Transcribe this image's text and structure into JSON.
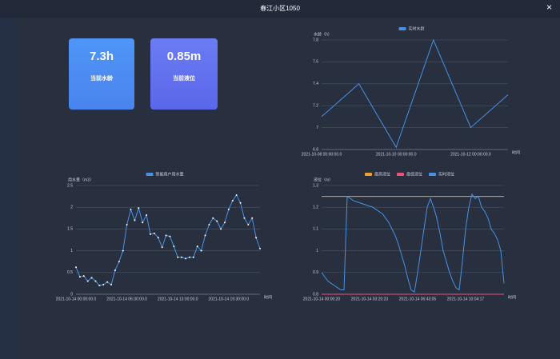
{
  "header": {
    "title": "春江小区1050",
    "close": "×"
  },
  "cards": [
    {
      "value": "7.3h",
      "label": "当前水龄"
    },
    {
      "value": "0.85m",
      "label": "当前液位"
    }
  ],
  "chart_data": [
    {
      "type": "line",
      "y_label": "水龄（h）",
      "x_label": "时间",
      "categories": [
        "2021-10-08 00:00:00.0",
        null,
        "2021-10-10 00:00:00.0",
        null,
        "2021-10-12 00:00:00.0",
        null
      ],
      "series": [
        {
          "name": "实时水龄",
          "color": "#4a90e2",
          "values": [
            7.1,
            7.4,
            6.82,
            7.8,
            7.0,
            7.3
          ]
        }
      ],
      "ylim": [
        6.8,
        7.8
      ],
      "yticks": [
        6.8,
        7,
        7.2,
        7.4,
        7.6,
        7.8
      ],
      "grid": true
    },
    {
      "type": "line",
      "y_label": "用水量（m3）",
      "x_label": "时间",
      "categories": [
        "2021-10-14 00:00:00.0",
        null,
        null,
        null,
        null,
        null,
        null,
        null,
        null,
        null,
        null,
        null,
        null,
        "2021-10-14 06:30:00.0",
        null,
        null,
        null,
        null,
        null,
        null,
        null,
        null,
        null,
        null,
        null,
        null,
        "2021-10-14 13:00:00.0",
        null,
        null,
        null,
        null,
        null,
        null,
        null,
        null,
        null,
        null,
        null,
        null,
        "2021-10-14 19:30:00.0",
        null,
        null,
        null,
        null,
        null,
        null,
        null,
        null
      ],
      "series": [
        {
          "name": "智能用户用水量",
          "color": "#4a90e2",
          "values": [
            0.62,
            0.4,
            0.42,
            0.3,
            0.38,
            0.3,
            0.2,
            0.22,
            0.28,
            0.22,
            0.55,
            0.75,
            1.0,
            1.6,
            1.95,
            1.7,
            1.98,
            1.65,
            1.82,
            1.38,
            1.4,
            1.3,
            1.08,
            1.35,
            1.33,
            1.1,
            0.85,
            0.85,
            0.82,
            0.85,
            0.85,
            1.1,
            1.0,
            1.35,
            1.6,
            1.75,
            1.68,
            1.5,
            1.65,
            1.95,
            2.15,
            2.28,
            2.1,
            1.75,
            1.6,
            1.75,
            1.3,
            1.05
          ]
        }
      ],
      "ylim": [
        0,
        2.5
      ],
      "yticks": [
        0,
        0.5,
        1,
        1.5,
        2,
        2.5
      ],
      "grid": true,
      "markers": true
    },
    {
      "type": "line",
      "y_label": "液位（m）",
      "x_label": "时间",
      "categories": [
        "2021-10-14 00:00:20",
        null,
        null,
        null,
        null,
        null,
        null,
        null,
        null,
        null,
        null,
        null,
        null,
        null,
        null,
        "2021-10-14 03:20:23",
        null,
        null,
        null,
        null,
        null,
        null,
        null,
        null,
        null,
        null,
        null,
        null,
        null,
        null,
        "2021-10-14 06:43:05",
        null,
        null,
        null,
        null,
        null,
        null,
        null,
        null,
        null,
        null,
        null,
        null,
        null,
        null,
        "2021-10-14 10:04:17",
        null,
        null,
        null,
        null,
        null,
        null,
        null,
        null,
        null,
        null,
        null,
        null
      ],
      "series": [
        {
          "name": "最高液位",
          "color": "#f0a030",
          "values": [
            1.25,
            1.25,
            1.25,
            1.25,
            1.25,
            1.25,
            1.25,
            1.25,
            1.25,
            1.25,
            1.25,
            1.25,
            1.25,
            1.25,
            1.25,
            1.25,
            1.25,
            1.25,
            1.25,
            1.25,
            1.25,
            1.25,
            1.25,
            1.25,
            1.25,
            1.25,
            1.25,
            1.25,
            1.25,
            1.25,
            1.25,
            1.25,
            1.25,
            1.25,
            1.25,
            1.25,
            1.25,
            1.25,
            1.25,
            1.25,
            1.25,
            1.25,
            1.25,
            1.25,
            1.25,
            1.25,
            1.25,
            1.25,
            1.25,
            1.25,
            1.25,
            1.25,
            1.25,
            1.25,
            1.25,
            1.25,
            1.25,
            1.25
          ]
        },
        {
          "name": "最低液位",
          "color": "#f0507a",
          "values": [
            0.8,
            0.8,
            0.8,
            0.8,
            0.8,
            0.8,
            0.8,
            0.8,
            0.8,
            0.8,
            0.8,
            0.8,
            0.8,
            0.8,
            0.8,
            0.8,
            0.8,
            0.8,
            0.8,
            0.8,
            0.8,
            0.8,
            0.8,
            0.8,
            0.8,
            0.8,
            0.8,
            0.8,
            0.8,
            0.8,
            0.8,
            0.8,
            0.8,
            0.8,
            0.8,
            0.8,
            0.8,
            0.8,
            0.8,
            0.8,
            0.8,
            0.8,
            0.8,
            0.8,
            0.8,
            0.8,
            0.8,
            0.8,
            0.8,
            0.8,
            0.8,
            0.8,
            0.8,
            0.8,
            0.8,
            0.8,
            0.8,
            0.8
          ]
        },
        {
          "name": "实时液位",
          "color": "#4a90e2",
          "values": [
            0.9,
            0.88,
            0.86,
            0.85,
            0.84,
            0.83,
            0.82,
            0.82,
            1.25,
            1.24,
            1.23,
            1.225,
            1.22,
            1.215,
            1.21,
            1.205,
            1.2,
            1.19,
            1.18,
            1.17,
            1.15,
            1.13,
            1.1,
            1.07,
            1.03,
            0.98,
            0.93,
            0.87,
            0.82,
            0.81,
            0.9,
            1.0,
            1.1,
            1.2,
            1.24,
            1.2,
            1.15,
            1.08,
            1.0,
            0.95,
            0.9,
            0.86,
            0.83,
            0.82,
            0.95,
            1.1,
            1.2,
            1.26,
            1.24,
            1.25,
            1.2,
            1.18,
            1.15,
            1.1,
            1.08,
            1.05,
            1.0,
            0.85
          ]
        }
      ],
      "ylim": [
        0.8,
        1.3
      ],
      "yticks": [
        0.8,
        0.9,
        1,
        1.1,
        1.2,
        1.3
      ],
      "grid": true
    }
  ]
}
